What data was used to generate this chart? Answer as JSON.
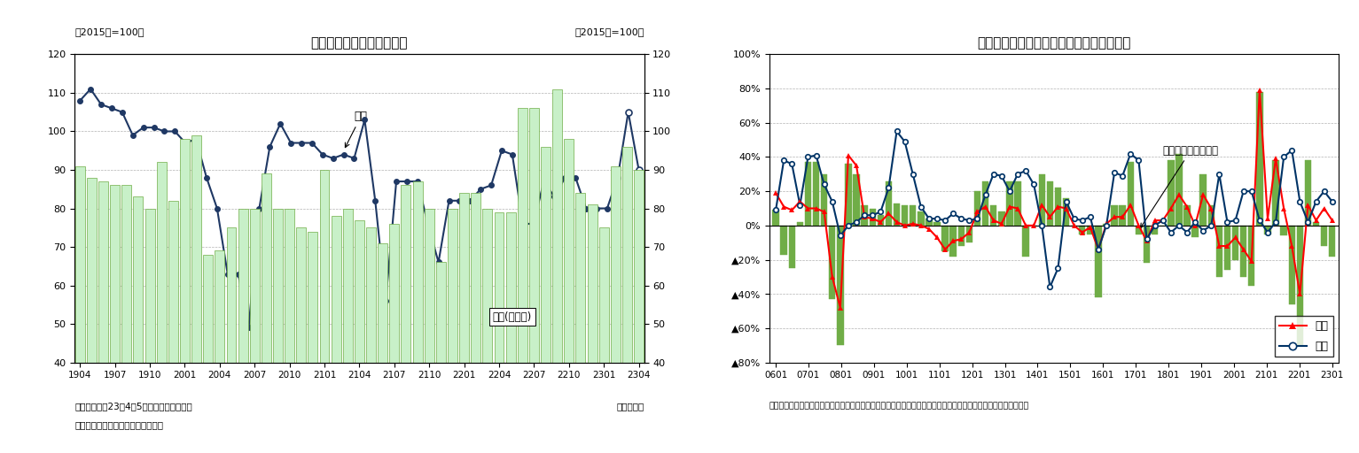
{
  "chart1": {
    "title": "輸送機械の生産、在庫動向",
    "left_label": "（2015年=100）",
    "right_label": "（2015年=100）",
    "xlabel": "（年・月）",
    "note1": "（注）生産の23年4、5月は予測指数で延長",
    "note2": "（資料）経済産業省「鉱工業指数」",
    "xtick_labels": [
      "1904",
      "1907",
      "1910",
      "2001",
      "2004",
      "2007",
      "2010",
      "2101",
      "2104",
      "2107",
      "2110",
      "2201",
      "2204",
      "2207",
      "2210",
      "2301",
      "2304"
    ],
    "production": [
      108,
      111,
      107,
      106,
      105,
      99,
      101,
      101,
      100,
      100,
      97,
      98,
      88,
      80,
      63,
      63,
      49,
      80,
      96,
      102,
      97,
      97,
      97,
      94,
      93,
      94,
      93,
      103,
      82,
      56,
      87,
      87,
      87,
      76,
      66,
      82,
      82,
      82,
      85,
      86,
      95,
      94,
      76,
      76,
      87,
      83,
      88,
      88,
      80,
      80,
      80,
      88,
      105,
      90
    ],
    "inventory": [
      91,
      88,
      87,
      86,
      86,
      83,
      80,
      92,
      82,
      98,
      99,
      68,
      69,
      75,
      80,
      80,
      89,
      80,
      80,
      75,
      74,
      90,
      78,
      80,
      77,
      75,
      71,
      76,
      86,
      87,
      80,
      66,
      80,
      84,
      84,
      80,
      79,
      79,
      106,
      106,
      96,
      111,
      98,
      84,
      81,
      75,
      91,
      96,
      90
    ],
    "ylim_left": [
      40,
      120
    ],
    "ylim_right": [
      40,
      120
    ],
    "yticks": [
      40,
      50,
      60,
      70,
      80,
      90,
      100,
      110,
      120
    ],
    "bar_color": "#c8f0c8",
    "bar_edge_color": "#70ad47",
    "line_color": "#1f3864",
    "open_circle_indices": [
      52,
      53
    ],
    "prod_annotation_text": "生産",
    "inv_annotation_text": "在庫(右目盛)"
  },
  "chart2": {
    "title": "電子部品・デバイスの出荷・在庫バランス",
    "note": "（注）出荷・在庫バランス＝出荷・前年比－在庫・前年比　（資料）経済産業省「鉱工業指数」　（年・四半期）",
    "xtick_labels": [
      "0601",
      "0701",
      "0801",
      "0901",
      "1001",
      "1101",
      "1201",
      "1301",
      "1401",
      "1501",
      "1601",
      "1701",
      "1801",
      "1901",
      "2001",
      "2101",
      "2201",
      "2301"
    ],
    "ytick_labels": [
      "100%",
      "80%",
      "60%",
      "40%",
      "20%",
      "0%",
      "▲20%",
      "▲40%",
      "▲60%",
      "▲80%"
    ],
    "ytick_vals": [
      100,
      80,
      60,
      40,
      20,
      0,
      -20,
      -40,
      -60,
      -80
    ],
    "balance_bars": [
      9,
      -17,
      -25,
      2,
      37,
      37,
      30,
      -43,
      -70,
      36,
      30,
      12,
      10,
      6,
      26,
      13,
      12,
      12,
      8,
      4,
      2,
      -15,
      -18,
      -12,
      -10,
      20,
      26,
      12,
      8,
      26,
      26,
      -18,
      0,
      30,
      26,
      22,
      16,
      0,
      -5,
      -5,
      -42,
      1,
      12,
      12,
      37,
      -5,
      -22,
      -5,
      0,
      38,
      42,
      12,
      -7,
      30,
      12,
      -30,
      -26,
      -20,
      -30,
      -35,
      78,
      -5,
      38,
      -6,
      -46,
      -70,
      38,
      2,
      -12,
      -18
    ],
    "shipment": [
      19,
      11,
      9,
      14,
      10,
      10,
      8,
      -30,
      -48,
      41,
      35,
      5,
      4,
      2,
      7,
      2,
      0,
      1,
      0,
      -2,
      -7,
      -14,
      -9,
      -8,
      -4,
      8,
      11,
      3,
      1,
      11,
      10,
      0,
      0,
      12,
      5,
      11,
      10,
      0,
      -4,
      -1,
      -14,
      1,
      5,
      5,
      12,
      0,
      -9,
      3,
      3,
      10,
      18,
      11,
      0,
      18,
      10,
      -12,
      -12,
      -7,
      -14,
      -21,
      79,
      4,
      39,
      10,
      -12,
      -40,
      12,
      3,
      10,
      3
    ],
    "inventory_line": [
      9,
      38,
      36,
      12,
      40,
      41,
      24,
      14,
      -6,
      0,
      2,
      6,
      6,
      8,
      22,
      55,
      49,
      30,
      11,
      4,
      4,
      3,
      7,
      4,
      3,
      4,
      18,
      30,
      29,
      20,
      30,
      32,
      24,
      0,
      -36,
      -25,
      14,
      4,
      3,
      5,
      -14,
      0,
      31,
      29,
      42,
      38,
      -8,
      0,
      3,
      -4,
      0,
      -4,
      2,
      -3,
      0,
      30,
      2,
      3,
      20,
      20,
      3,
      -4,
      2,
      40,
      44,
      14,
      2,
      14,
      20,
      14
    ],
    "shipment_color": "#ff0000",
    "inventory_color": "#003366",
    "bar_color": "#70ad47",
    "ylim": [
      -80,
      100
    ],
    "legend_shipment": "出荷",
    "legend_inventory": "在庫",
    "balance_label": "出荷・在庫バランス"
  }
}
